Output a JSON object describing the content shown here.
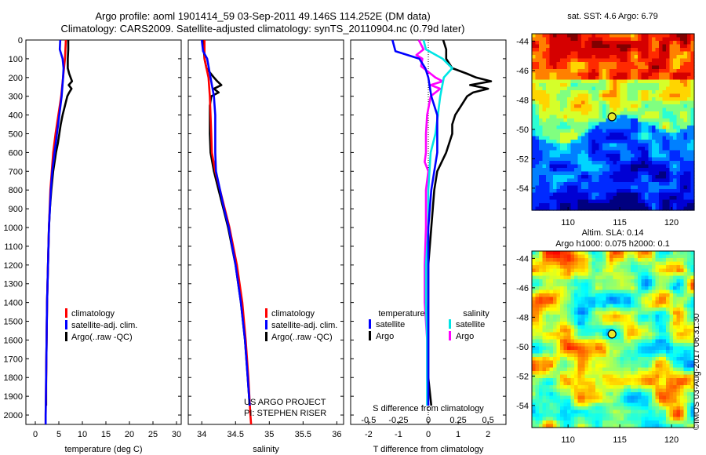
{
  "header": {
    "line1": "Argo profile: aoml 1901414_59 03-Sep-2011 49.146S 114.252E (DM data)",
    "line2": "Climatology: CARS2009. Satellite-adjusted climatology: synTS_20110904.nc (0.79d later)"
  },
  "colors": {
    "climatology": "#ff0000",
    "satellite": "#0000ff",
    "argo": "#000000",
    "s_satellite": "#00e5e5",
    "s_argo": "#ff00ff"
  },
  "pressure_ticks": [
    0,
    100,
    200,
    300,
    400,
    500,
    600,
    700,
    800,
    900,
    1000,
    1100,
    1200,
    1300,
    1400,
    1500,
    1600,
    1700,
    1800,
    1900,
    2000
  ],
  "chart_data": [
    {
      "type": "line",
      "xlabel": "temperature (deg C)",
      "xlim": [
        -2,
        31
      ],
      "ylim": [
        0,
        2050
      ],
      "xticks": [
        0,
        5,
        10,
        15,
        20,
        25,
        30
      ],
      "legend": [
        "climatology",
        "satellite-adj. clim.",
        "Argo(..raw -QC)"
      ],
      "series": [
        {
          "name": "climatology",
          "color": "#ff0000",
          "p": [
            0,
            50,
            100,
            150,
            200,
            250,
            300,
            350,
            400,
            450,
            500,
            600,
            700,
            800,
            1000,
            1200,
            1400,
            1600,
            1800,
            2000,
            2050
          ],
          "v": [
            6.5,
            6.4,
            6.3,
            6.1,
            5.9,
            5.7,
            5.5,
            5.2,
            4.9,
            4.6,
            4.3,
            3.8,
            3.5,
            3.2,
            2.9,
            2.7,
            2.5,
            2.4,
            2.3,
            2.2,
            2.2
          ]
        },
        {
          "name": "satellite-adj. clim.",
          "color": "#0000ff",
          "p": [
            0,
            50,
            100,
            150,
            200,
            300,
            400,
            500,
            600,
            700,
            800,
            1000,
            1200,
            1400,
            1600,
            1800,
            2000,
            2050
          ],
          "v": [
            5.3,
            5.2,
            5.8,
            6.0,
            5.9,
            5.6,
            5.1,
            4.6,
            4.1,
            3.6,
            3.3,
            2.9,
            2.7,
            2.5,
            2.4,
            2.3,
            2.2,
            2.2
          ]
        },
        {
          "name": "Argo(..raw -QC)",
          "color": "#000000",
          "p": [
            0,
            50,
            100,
            150,
            180,
            200,
            220,
            240,
            260,
            280,
            300,
            350,
            400,
            450,
            500,
            550,
            600,
            650,
            700,
            800,
            900,
            1000,
            1200,
            1400,
            1600,
            1800,
            1950
          ],
          "v": [
            7.0,
            7.0,
            6.9,
            6.9,
            7.2,
            7.5,
            7.8,
            7.1,
            7.7,
            7.2,
            6.8,
            6.3,
            5.8,
            5.4,
            5.1,
            4.8,
            4.4,
            4.1,
            3.8,
            3.4,
            3.1,
            2.9,
            2.7,
            2.5,
            2.4,
            2.3,
            2.3
          ]
        }
      ]
    },
    {
      "type": "line",
      "xlabel": "salinity",
      "xlim": [
        33.8,
        36.1
      ],
      "ylim": [
        0,
        2050
      ],
      "xticks": [
        34,
        34.5,
        35,
        35.5,
        36
      ],
      "legend": [
        "climatology",
        "satellite-adj. clim.",
        "Argo(..raw -QC)"
      ],
      "annotation": [
        "US ARGO PROJECT",
        "PI: STEPHEN RISER"
      ],
      "series": [
        {
          "name": "climatology",
          "color": "#ff0000",
          "p": [
            0,
            100,
            150,
            200,
            300,
            400,
            500,
            600,
            700,
            800,
            900,
            1000,
            1200,
            1400,
            1600,
            1800,
            2000,
            2050
          ],
          "v": [
            34.04,
            34.04,
            34.07,
            34.1,
            34.12,
            34.13,
            34.14,
            34.15,
            34.2,
            34.27,
            34.34,
            34.41,
            34.52,
            34.6,
            34.65,
            34.69,
            34.72,
            34.73
          ]
        },
        {
          "name": "satellite-adj. clim.",
          "color": "#0000ff",
          "p": [
            0,
            60,
            100,
            200,
            300,
            400,
            500,
            600,
            700,
            800,
            900,
            1000,
            1200,
            1400,
            1600,
            1800,
            1950
          ],
          "v": [
            34.0,
            34.02,
            34.08,
            34.13,
            34.18,
            34.2,
            34.2,
            34.2,
            34.21,
            34.27,
            34.33,
            34.4,
            34.5,
            34.58,
            34.64,
            34.68,
            34.71
          ]
        },
        {
          "name": "Argo(..raw -QC)",
          "color": "#000000",
          "p": [
            0,
            50,
            100,
            150,
            200,
            220,
            240,
            260,
            280,
            300,
            350,
            400,
            500,
            600,
            700,
            800,
            900,
            1000,
            1200,
            1400,
            1600,
            1800,
            1950
          ],
          "v": [
            34.03,
            34.03,
            34.04,
            34.07,
            34.18,
            34.23,
            34.29,
            34.18,
            34.25,
            34.14,
            34.12,
            34.12,
            34.12,
            34.13,
            34.18,
            34.25,
            34.32,
            34.39,
            34.5,
            34.58,
            34.64,
            34.68,
            34.71
          ]
        }
      ]
    },
    {
      "type": "line",
      "xlabel": "T difference from climatology",
      "xlim": [
        -2.6,
        2.6
      ],
      "ylim": [
        0,
        2050
      ],
      "xticks": [
        -2,
        -1,
        0,
        1,
        2
      ],
      "x2label": "S difference from climatology",
      "x2ticks": [
        -0.5,
        -0.25,
        0,
        0.25,
        0.5
      ],
      "x2tick_labels": [
        "-0.5",
        "-0.25",
        "0",
        "0.25",
        "0.5"
      ],
      "legend_groups": [
        {
          "title": "temperature",
          "items": [
            "satellite",
            "Argo"
          ]
        },
        {
          "title": "salinity",
          "items": [
            "satellite",
            "Argo"
          ]
        }
      ],
      "series": [
        {
          "name": "temperature satellite",
          "color": "#0000ff",
          "p": [
            0,
            60,
            100,
            150,
            200,
            300,
            400,
            500,
            600,
            700,
            800,
            1000,
            1200,
            1400,
            1600,
            1800,
            1950
          ],
          "v": [
            -1.2,
            -1.1,
            -0.3,
            -0.1,
            0.0,
            0.1,
            0.3,
            0.3,
            0.3,
            0.2,
            0.1,
            0.0,
            0.0,
            0.0,
            0.0,
            0.0,
            0.0
          ]
        },
        {
          "name": "temperature Argo",
          "color": "#000000",
          "p": [
            0,
            50,
            100,
            150,
            180,
            200,
            220,
            240,
            260,
            280,
            300,
            350,
            400,
            450,
            500,
            600,
            700,
            800,
            1000,
            1200,
            1400,
            1600,
            1800,
            1950
          ],
          "v": [
            0.5,
            0.6,
            0.6,
            0.8,
            1.3,
            1.6,
            2.1,
            1.4,
            2.0,
            1.5,
            1.3,
            1.1,
            0.9,
            0.8,
            0.8,
            0.6,
            0.3,
            0.2,
            0.1,
            0.0,
            0.0,
            0.0,
            0.0,
            0.1
          ]
        },
        {
          "name": "salinity satellite",
          "color": "#00e5e5",
          "p": [
            0,
            50,
            100,
            150,
            200,
            300,
            400,
            500,
            600,
            700,
            800,
            1000,
            1200,
            1400,
            1600,
            1800,
            1950
          ],
          "v": [
            -0.04,
            -0.02,
            0.12,
            0.2,
            0.13,
            0.1,
            0.08,
            0.06,
            0.02,
            0.01,
            0.0,
            0.0,
            -0.02,
            -0.02,
            -0.01,
            -0.01,
            -0.01
          ]
        },
        {
          "name": "salinity Argo",
          "color": "#ff00ff",
          "p": [
            0,
            50,
            80,
            100,
            140,
            180,
            200,
            220,
            240,
            260,
            300,
            400,
            500,
            600,
            650,
            700,
            800,
            1000,
            1200,
            1400,
            1600,
            1800,
            1950
          ],
          "v": [
            -0.08,
            -0.04,
            -0.1,
            -0.05,
            -0.06,
            0.02,
            0.06,
            0.12,
            0.02,
            0.1,
            0.02,
            -0.01,
            -0.02,
            -0.02,
            -0.03,
            0.0,
            -0.02,
            -0.02,
            -0.03,
            -0.03,
            -0.01,
            -0.01,
            0.0
          ]
        }
      ]
    },
    {
      "type": "heatmap",
      "title": "sat. SST: 4.6 Argo: 6.79",
      "xlim": [
        106.5,
        122.2
      ],
      "ylim": [
        -55.5,
        -43.5
      ],
      "xticks": [
        110,
        115,
        120
      ],
      "yticks": [
        -44,
        -46,
        -48,
        -50,
        -52,
        -54
      ],
      "marker": {
        "lon": 114.252,
        "lat": -49.146
      }
    },
    {
      "type": "heatmap",
      "title": "Altim. SLA: 0.14",
      "subtitle": "Argo h1000: 0.075 h2000: 0.1",
      "xlim": [
        106.5,
        122.2
      ],
      "ylim": [
        -55.5,
        -43.5
      ],
      "xticks": [
        110,
        115,
        120
      ],
      "yticks": [
        -44,
        -46,
        -48,
        -50,
        -52,
        -54
      ],
      "marker": {
        "lon": 114.252,
        "lat": -49.146
      }
    }
  ],
  "credit": "©IMOS 03-Aug-2017 06:31:30"
}
